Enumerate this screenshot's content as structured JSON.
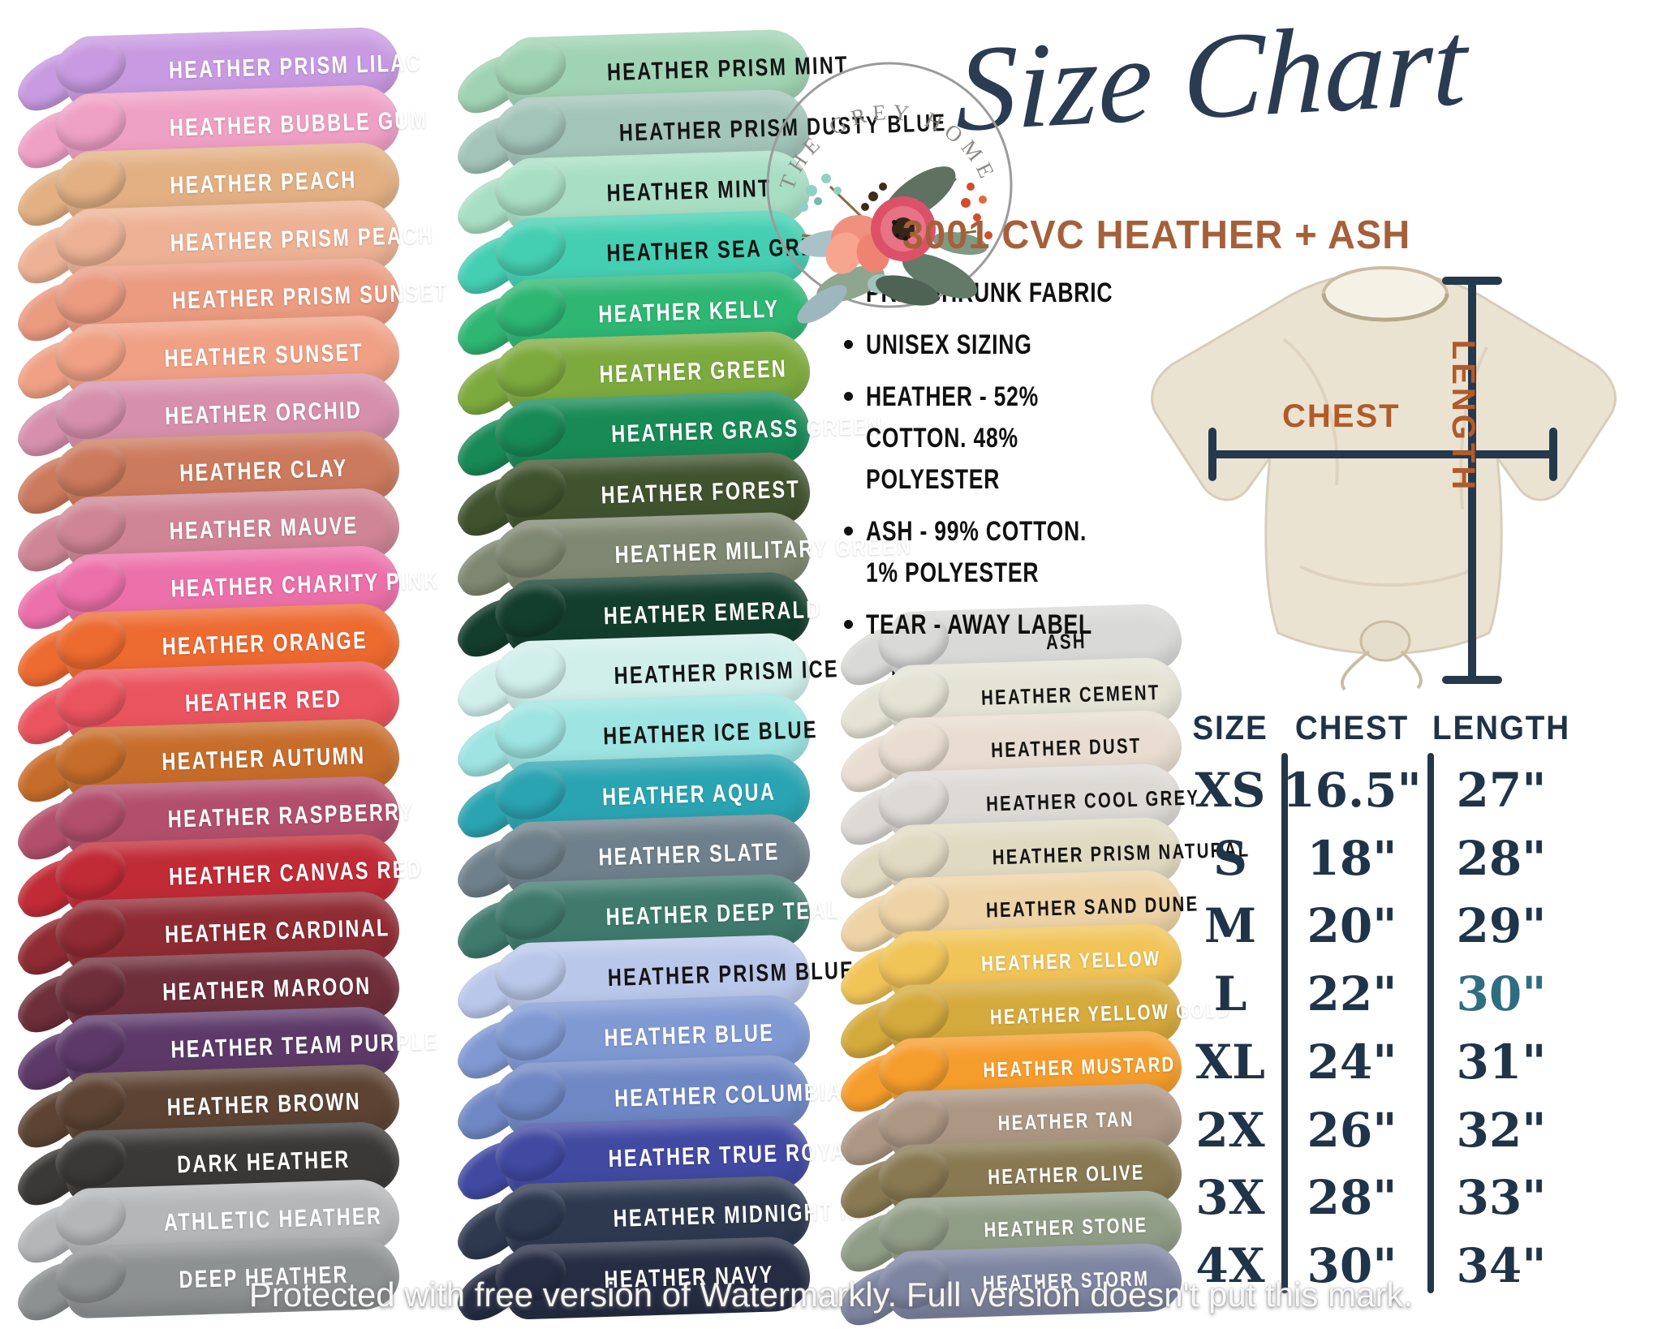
{
  "header": {
    "title": "Size Chart",
    "subtitle": "3001 CVC HEATHER + ASH"
  },
  "logo": {
    "brand": "THE GREY HOME CO."
  },
  "features": [
    "PRE- SHRUNK FABRIC",
    "UNISEX SIZING",
    "HEATHER - 52% COTTON. 48% POLYESTER",
    "ASH -  99% COTTON. 1% POLYESTER",
    "TEAR -  AWAY LABEL"
  ],
  "shirt_diagram": {
    "chest_label": "CHEST",
    "length_label": "LENGTH"
  },
  "size_table": {
    "headers": [
      "SIZE",
      "CHEST",
      "LENGTH"
    ],
    "rows": [
      [
        "XS",
        "16.5\"",
        "27\""
      ],
      [
        "S",
        "18\"",
        "28\""
      ],
      [
        "M",
        "20\"",
        "29\""
      ],
      [
        "L",
        "22\"",
        "30\""
      ],
      [
        "XL",
        "24\"",
        "31\""
      ],
      [
        "2X",
        "26\"",
        "32\""
      ],
      [
        "3X",
        "28\"",
        "33\""
      ],
      [
        "4X",
        "30\"",
        "34\""
      ]
    ],
    "highlight": {
      "row_index": 3,
      "col_index": 2,
      "color": "#2f6e81"
    }
  },
  "colors": {
    "navy": "#24364a",
    "rust": "#a5603a",
    "cream": "#ebe3d2"
  },
  "swatch_columns": [
    {
      "name": "left",
      "items": [
        {
          "label": "HEATHER PRISM LILAC",
          "color": "#c89ae1",
          "text": "white"
        },
        {
          "label": "HEATHER BUBBLE GUM",
          "color": "#efa0c5",
          "text": "white"
        },
        {
          "label": "HEATHER PEACH",
          "color": "#e2b083",
          "text": "white"
        },
        {
          "label": "HEATHER PRISM PEACH",
          "color": "#edb295",
          "text": "white"
        },
        {
          "label": "HEATHER PRISM SUNSET",
          "color": "#ea9b80",
          "text": "white"
        },
        {
          "label": "HEATHER SUNSET",
          "color": "#f0a185",
          "text": "white"
        },
        {
          "label": "HEATHER ORCHID",
          "color": "#d690ac",
          "text": "white"
        },
        {
          "label": "HEATHER CLAY",
          "color": "#cc7a5d",
          "text": "white"
        },
        {
          "label": "HEATHER MAUVE",
          "color": "#cf8595",
          "text": "white"
        },
        {
          "label": "HEATHER CHARITY PINK",
          "color": "#ec70a9",
          "text": "white"
        },
        {
          "label": "HEATHER ORANGE",
          "color": "#ed6a30",
          "text": "white"
        },
        {
          "label": "HEATHER RED",
          "color": "#ea545e",
          "text": "white"
        },
        {
          "label": "HEATHER AUTUMN",
          "color": "#c76d2b",
          "text": "white"
        },
        {
          "label": "HEATHER RASPBERRY",
          "color": "#b24f6c",
          "text": "white"
        },
        {
          "label": "HEATHER CANVAS RED",
          "color": "#c02b36",
          "text": "white"
        },
        {
          "label": "HEATHER CARDINAL",
          "color": "#8f2b33",
          "text": "white"
        },
        {
          "label": "HEATHER MAROON",
          "color": "#6e2e3a",
          "text": "white"
        },
        {
          "label": "HEATHER TEAM PURPLE",
          "color": "#5d3968",
          "text": "white"
        },
        {
          "label": "HEATHER BROWN",
          "color": "#5c4333",
          "text": "white"
        },
        {
          "label": "DARK HEATHER",
          "color": "#3a3937",
          "text": "white"
        },
        {
          "label": "ATHLETIC HEATHER",
          "color": "#b4b6b8",
          "text": "white"
        },
        {
          "label": "DEEP HEATHER",
          "color": "#8e9192",
          "text": "white"
        }
      ]
    },
    {
      "name": "middle",
      "items": [
        {
          "label": "HEATHER PRISM MINT",
          "color": "#a0d3b3",
          "text": "black"
        },
        {
          "label": "HEATHER PRISM DUSTY BLUE",
          "color": "#a2c4b9",
          "text": "black"
        },
        {
          "label": "HEATHER MINT",
          "color": "#a8dfc4",
          "text": "black"
        },
        {
          "label": "HEATHER SEA GREEN",
          "color": "#45cfb2",
          "text": "black"
        },
        {
          "label": "HEATHER KELLY",
          "color": "#2eb673",
          "text": "white"
        },
        {
          "label": "HEATHER GREEN",
          "color": "#7daa3e",
          "text": "white"
        },
        {
          "label": "HEATHER GRASS GREEN",
          "color": "#188a56",
          "text": "white"
        },
        {
          "label": "HEATHER FOREST",
          "color": "#41532e",
          "text": "white"
        },
        {
          "label": "HEATHER MILITARY GREEN",
          "color": "#7e8771",
          "text": "white"
        },
        {
          "label": "HEATHER EMERALD",
          "color": "#133e2d",
          "text": "white"
        },
        {
          "label": "HEATHER PRISM ICE BLUE",
          "color": "#d0efeb",
          "text": "black"
        },
        {
          "label": "HEATHER ICE BLUE",
          "color": "#9de4e2",
          "text": "black"
        },
        {
          "label": "HEATHER AQUA",
          "color": "#2ba4b2",
          "text": "white"
        },
        {
          "label": "HEATHER SLATE",
          "color": "#6e808b",
          "text": "white"
        },
        {
          "label": "HEATHER DEEP TEAL",
          "color": "#3f7a6d",
          "text": "white"
        },
        {
          "label": "HEATHER PRISM BLUE",
          "color": "#b9c7ea",
          "text": "black"
        },
        {
          "label": "HEATHER BLUE",
          "color": "#8099d3",
          "text": "white"
        },
        {
          "label": "HEATHER COLUMBIA BLUE",
          "color": "#6f87c4",
          "text": "white"
        },
        {
          "label": "HEATHER TRUE ROYAL",
          "color": "#4149a1",
          "text": "white"
        },
        {
          "label": "HEATHER MIDNIGHT NAVY",
          "color": "#2e3950",
          "text": "white"
        },
        {
          "label": "HEATHER NAVY",
          "color": "#262d43",
          "text": "white"
        }
      ]
    },
    {
      "name": "right",
      "items": [
        {
          "label": "ASH",
          "color": "#d9d9d7",
          "text": "black"
        },
        {
          "label": "HEATHER CEMENT",
          "color": "#e4e3d5",
          "text": "black"
        },
        {
          "label": "HEATHER DUST",
          "color": "#e8ddd0",
          "text": "black"
        },
        {
          "label": "HEATHER COOL GREY",
          "color": "#dddad6",
          "text": "black"
        },
        {
          "label": "HEATHER PRISM NATURAL",
          "color": "#e1dac3",
          "text": "black"
        },
        {
          "label": "HEATHER SAND DUNE",
          "color": "#edd3a5",
          "text": "black"
        },
        {
          "label": "HEATHER YELLOW",
          "color": "#f1c458",
          "text": "white"
        },
        {
          "label": "HEATHER YELLOW GOLD",
          "color": "#d5aa3d",
          "text": "white"
        },
        {
          "label": "HEATHER MUSTARD",
          "color": "#f59d2c",
          "text": "white"
        },
        {
          "label": "HEATHER TAN",
          "color": "#ac9684",
          "text": "white"
        },
        {
          "label": "HEATHER OLIVE",
          "color": "#887952",
          "text": "white"
        },
        {
          "label": "HEATHER STONE",
          "color": "#909d86",
          "text": "white"
        },
        {
          "label": "HEATHER STORM",
          "color": "#7e85a1",
          "text": "white"
        }
      ]
    }
  ],
  "watermark": "Protected with free version of Watermarkly. Full version doesn't put this mark."
}
